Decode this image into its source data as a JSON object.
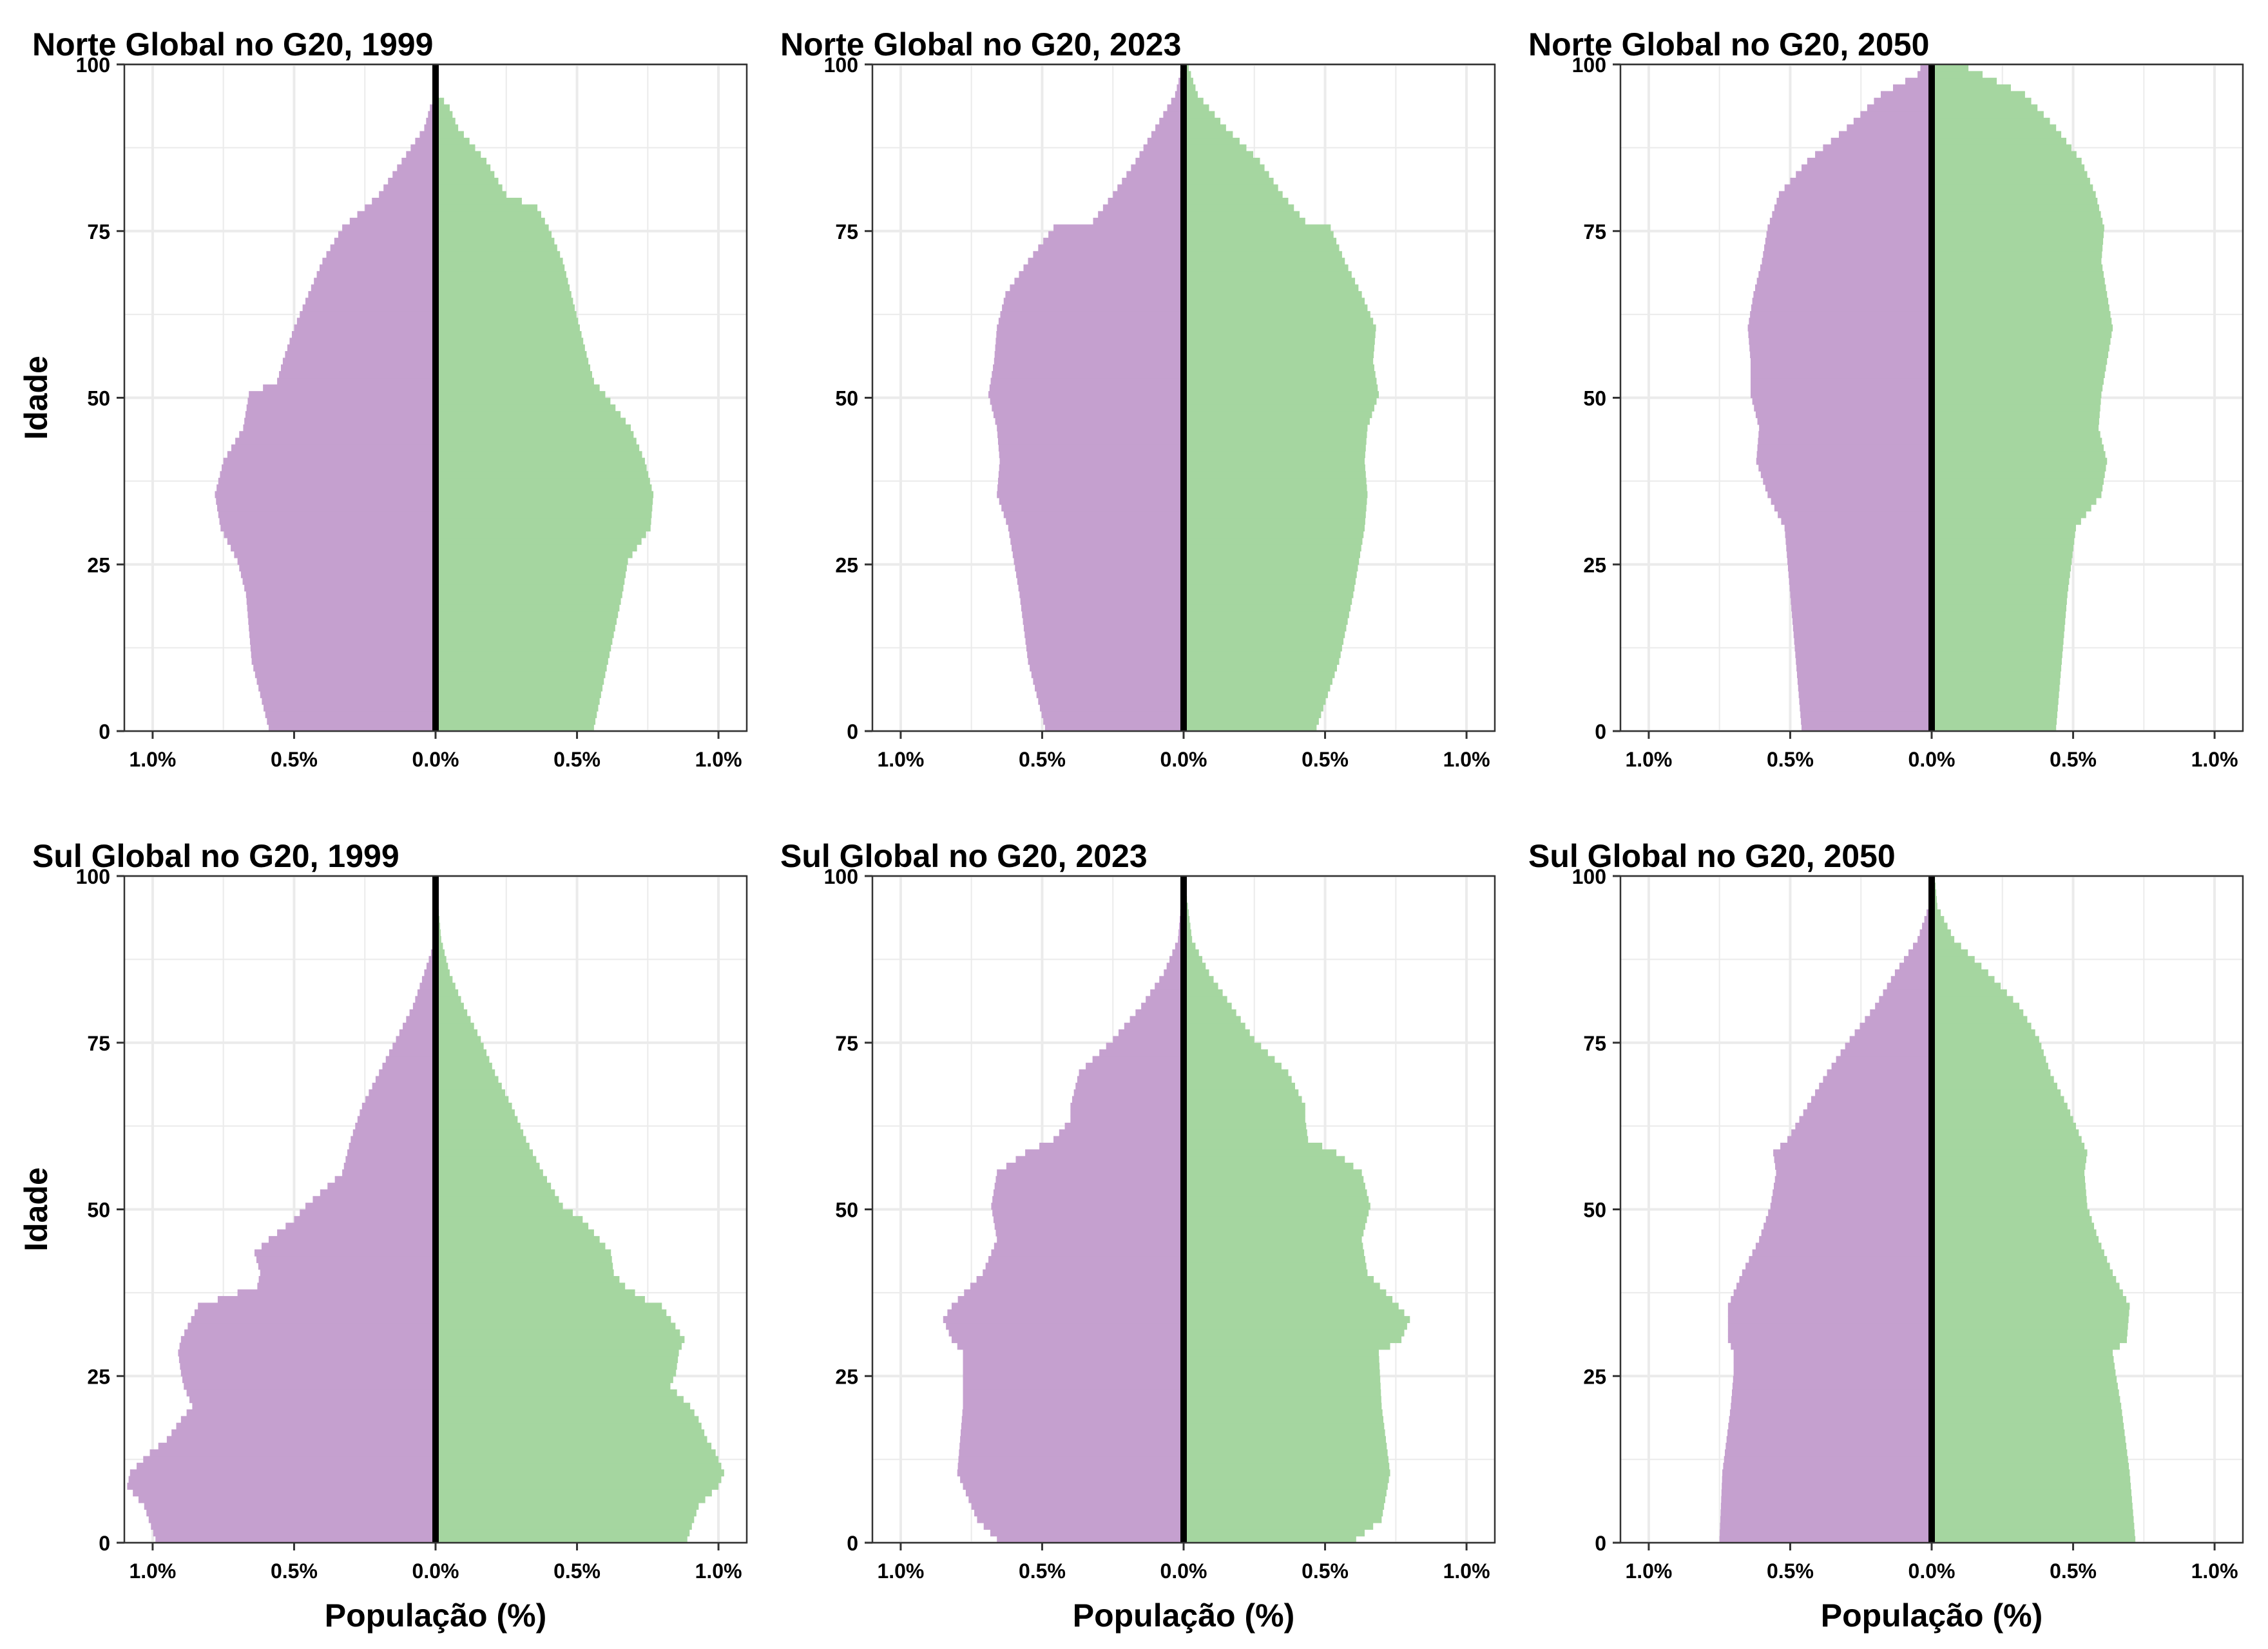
{
  "figure": {
    "colors": {
      "left_fill": "#c5a0cf",
      "right_fill": "#a5d6a0",
      "center_line": "#000000",
      "grid": "#ebebeb",
      "panel_border": "#333333",
      "text": "#000000"
    }
  },
  "chart_data": [
    {
      "type": "bar",
      "orientation": "horizontal",
      "title": "Norte Global no G20, 1999",
      "ylabel": "Idade",
      "xlabel": "",
      "xlim": [
        -1.1,
        1.1
      ],
      "ylim": [
        0,
        100
      ],
      "x_ticks": [
        -1.0,
        -0.5,
        0.0,
        0.5,
        1.0
      ],
      "x_tick_labels": [
        "1.0%",
        "0.5%",
        "0.0%",
        "0.5%",
        "1.0%"
      ],
      "y_ticks": [
        0,
        25,
        50,
        75,
        100
      ],
      "y_tick_labels": [
        "0",
        "25",
        "50",
        "75",
        "100"
      ],
      "grid": true,
      "ages_knots": [
        0,
        10,
        20,
        25,
        30,
        35,
        40,
        45,
        50,
        52,
        55,
        60,
        65,
        70,
        75,
        78,
        80,
        85,
        90,
        93,
        95,
        100
      ],
      "series": [
        {
          "side": "left",
          "values": [
            0.59,
            0.65,
            0.67,
            0.7,
            0.76,
            0.78,
            0.75,
            0.68,
            0.66,
            0.56,
            0.54,
            0.5,
            0.45,
            0.4,
            0.33,
            0.25,
            0.2,
            0.12,
            0.04,
            0.02,
            0.0,
            0.0
          ]
        },
        {
          "side": "right",
          "values": [
            0.56,
            0.61,
            0.66,
            0.68,
            0.76,
            0.77,
            0.74,
            0.69,
            0.6,
            0.56,
            0.54,
            0.51,
            0.48,
            0.45,
            0.4,
            0.36,
            0.25,
            0.18,
            0.08,
            0.05,
            0.01,
            0.0
          ]
        }
      ]
    },
    {
      "type": "bar",
      "orientation": "horizontal",
      "title": "Norte Global no G20, 2023",
      "ylabel": "",
      "xlabel": "",
      "xlim": [
        -1.1,
        1.1
      ],
      "ylim": [
        0,
        100
      ],
      "x_ticks": [
        -1.0,
        -0.5,
        0.0,
        0.5,
        1.0
      ],
      "x_tick_labels": [
        "1.0%",
        "0.5%",
        "0.0%",
        "0.5%",
        "1.0%"
      ],
      "y_ticks": [
        0,
        25,
        50,
        75,
        100
      ],
      "y_tick_labels": [
        "0",
        "25",
        "50",
        "75",
        "100"
      ],
      "grid": true,
      "ages_knots": [
        0,
        10,
        20,
        30,
        35,
        40,
        45,
        50,
        55,
        60,
        65,
        70,
        75,
        76,
        80,
        85,
        90,
        95,
        100
      ],
      "series": [
        {
          "side": "left",
          "values": [
            0.49,
            0.55,
            0.58,
            0.62,
            0.66,
            0.65,
            0.66,
            0.69,
            0.67,
            0.66,
            0.63,
            0.55,
            0.46,
            0.32,
            0.25,
            0.17,
            0.1,
            0.03,
            0.0
          ]
        },
        {
          "side": "right",
          "values": [
            0.47,
            0.55,
            0.6,
            0.64,
            0.65,
            0.64,
            0.65,
            0.69,
            0.67,
            0.68,
            0.63,
            0.57,
            0.52,
            0.43,
            0.35,
            0.27,
            0.15,
            0.05,
            0.01
          ]
        }
      ]
    },
    {
      "type": "bar",
      "orientation": "horizontal",
      "title": "Norte Global no G20, 2050",
      "ylabel": "",
      "xlabel": "",
      "xlim": [
        -1.1,
        1.1
      ],
      "ylim": [
        0,
        100
      ],
      "x_ticks": [
        -1.0,
        -0.5,
        0.0,
        0.5,
        1.0
      ],
      "x_tick_labels": [
        "1.0%",
        "0.5%",
        "0.0%",
        "0.5%",
        "1.0%"
      ],
      "y_ticks": [
        0,
        25,
        50,
        75,
        100
      ],
      "y_tick_labels": [
        "0",
        "25",
        "50",
        "75",
        "100"
      ],
      "grid": true,
      "ages_knots": [
        0,
        10,
        20,
        30,
        35,
        40,
        45,
        50,
        55,
        60,
        65,
        70,
        75,
        80,
        85,
        90,
        95,
        98,
        100
      ],
      "series": [
        {
          "side": "left",
          "values": [
            0.46,
            0.48,
            0.5,
            0.52,
            0.58,
            0.62,
            0.61,
            0.64,
            0.64,
            0.65,
            0.63,
            0.6,
            0.58,
            0.54,
            0.44,
            0.3,
            0.18,
            0.05,
            0.03
          ]
        },
        {
          "side": "right",
          "values": [
            0.44,
            0.46,
            0.48,
            0.51,
            0.6,
            0.62,
            0.59,
            0.6,
            0.62,
            0.64,
            0.62,
            0.6,
            0.61,
            0.58,
            0.53,
            0.44,
            0.33,
            0.18,
            0.08
          ]
        }
      ]
    },
    {
      "type": "bar",
      "orientation": "horizontal",
      "title": "Sul Global no G20, 1999",
      "ylabel": "Idade",
      "xlabel": "População (%)",
      "xlim": [
        -1.1,
        1.1
      ],
      "ylim": [
        0,
        100
      ],
      "x_ticks": [
        -1.0,
        -0.5,
        0.0,
        0.5,
        1.0
      ],
      "x_tick_labels": [
        "1.0%",
        "0.5%",
        "0.0%",
        "0.5%",
        "1.0%"
      ],
      "y_ticks": [
        0,
        25,
        50,
        75,
        100
      ],
      "y_tick_labels": [
        "0",
        "25",
        "50",
        "75",
        "100"
      ],
      "grid": true,
      "ages_knots": [
        0,
        5,
        8,
        10,
        13,
        15,
        18,
        20,
        23,
        25,
        28,
        30,
        35,
        36,
        38,
        40,
        43,
        45,
        48,
        50,
        55,
        60,
        65,
        70,
        75,
        80,
        85,
        90,
        100
      ],
      "series": [
        {
          "side": "left",
          "values": [
            0.99,
            1.03,
            1.09,
            1.08,
            1.01,
            0.95,
            0.9,
            0.86,
            0.89,
            0.9,
            0.91,
            0.9,
            0.84,
            0.77,
            0.63,
            0.62,
            0.64,
            0.59,
            0.5,
            0.46,
            0.33,
            0.3,
            0.26,
            0.2,
            0.14,
            0.08,
            0.04,
            0.0,
            0.0
          ]
        },
        {
          "side": "right",
          "values": [
            0.89,
            0.93,
            1.0,
            1.02,
            0.99,
            0.96,
            0.93,
            0.9,
            0.83,
            0.85,
            0.86,
            0.88,
            0.8,
            0.74,
            0.67,
            0.63,
            0.62,
            0.58,
            0.52,
            0.45,
            0.38,
            0.32,
            0.27,
            0.21,
            0.16,
            0.1,
            0.05,
            0.02,
            0.0
          ]
        }
      ]
    },
    {
      "type": "bar",
      "orientation": "horizontal",
      "title": "Sul Global no G20, 2023",
      "ylabel": "",
      "xlabel": "População (%)",
      "xlim": [
        -1.1,
        1.1
      ],
      "ylim": [
        0,
        100
      ],
      "x_ticks": [
        -1.0,
        -0.5,
        0.0,
        0.5,
        1.0
      ],
      "x_tick_labels": [
        "1.0%",
        "0.5%",
        "0.0%",
        "0.5%",
        "1.0%"
      ],
      "y_ticks": [
        0,
        25,
        50,
        75,
        100
      ],
      "y_tick_labels": [
        "0",
        "25",
        "50",
        "75",
        "100"
      ],
      "grid": true,
      "ages_knots": [
        0,
        3,
        10,
        20,
        28,
        30,
        33,
        35,
        40,
        45,
        50,
        55,
        58,
        60,
        63,
        65,
        70,
        75,
        80,
        85,
        90,
        100
      ],
      "series": [
        {
          "side": "left",
          "values": [
            0.66,
            0.73,
            0.8,
            0.78,
            0.78,
            0.82,
            0.85,
            0.82,
            0.71,
            0.66,
            0.68,
            0.66,
            0.56,
            0.46,
            0.4,
            0.4,
            0.37,
            0.25,
            0.15,
            0.07,
            0.02,
            0.0
          ]
        },
        {
          "side": "right",
          "values": [
            0.61,
            0.7,
            0.73,
            0.7,
            0.69,
            0.77,
            0.8,
            0.76,
            0.65,
            0.63,
            0.66,
            0.63,
            0.54,
            0.44,
            0.43,
            0.43,
            0.37,
            0.25,
            0.17,
            0.09,
            0.03,
            0.0
          ]
        }
      ]
    },
    {
      "type": "bar",
      "orientation": "horizontal",
      "title": "Sul Global no G20, 2050",
      "ylabel": "",
      "xlabel": "População (%)",
      "xlim": [
        -1.1,
        1.1
      ],
      "ylim": [
        0,
        100
      ],
      "x_ticks": [
        -1.0,
        -0.5,
        0.0,
        0.5,
        1.0
      ],
      "x_tick_labels": [
        "1.0%",
        "0.5%",
        "0.0%",
        "0.5%",
        "1.0%"
      ],
      "y_ticks": [
        0,
        25,
        50,
        75,
        100
      ],
      "y_tick_labels": [
        "0",
        "25",
        "50",
        "75",
        "100"
      ],
      "grid": true,
      "ages_knots": [
        0,
        10,
        20,
        25,
        28,
        30,
        35,
        40,
        45,
        50,
        55,
        58,
        60,
        65,
        70,
        75,
        80,
        85,
        90,
        95,
        100
      ],
      "series": [
        {
          "side": "left",
          "values": [
            0.75,
            0.74,
            0.71,
            0.7,
            0.7,
            0.72,
            0.72,
            0.67,
            0.61,
            0.57,
            0.55,
            0.56,
            0.51,
            0.44,
            0.37,
            0.29,
            0.2,
            0.13,
            0.05,
            0.01,
            0.0
          ]
        },
        {
          "side": "right",
          "values": [
            0.72,
            0.7,
            0.67,
            0.65,
            0.64,
            0.69,
            0.7,
            0.64,
            0.59,
            0.55,
            0.54,
            0.55,
            0.53,
            0.48,
            0.42,
            0.38,
            0.31,
            0.2,
            0.08,
            0.02,
            0.01
          ]
        }
      ]
    }
  ]
}
